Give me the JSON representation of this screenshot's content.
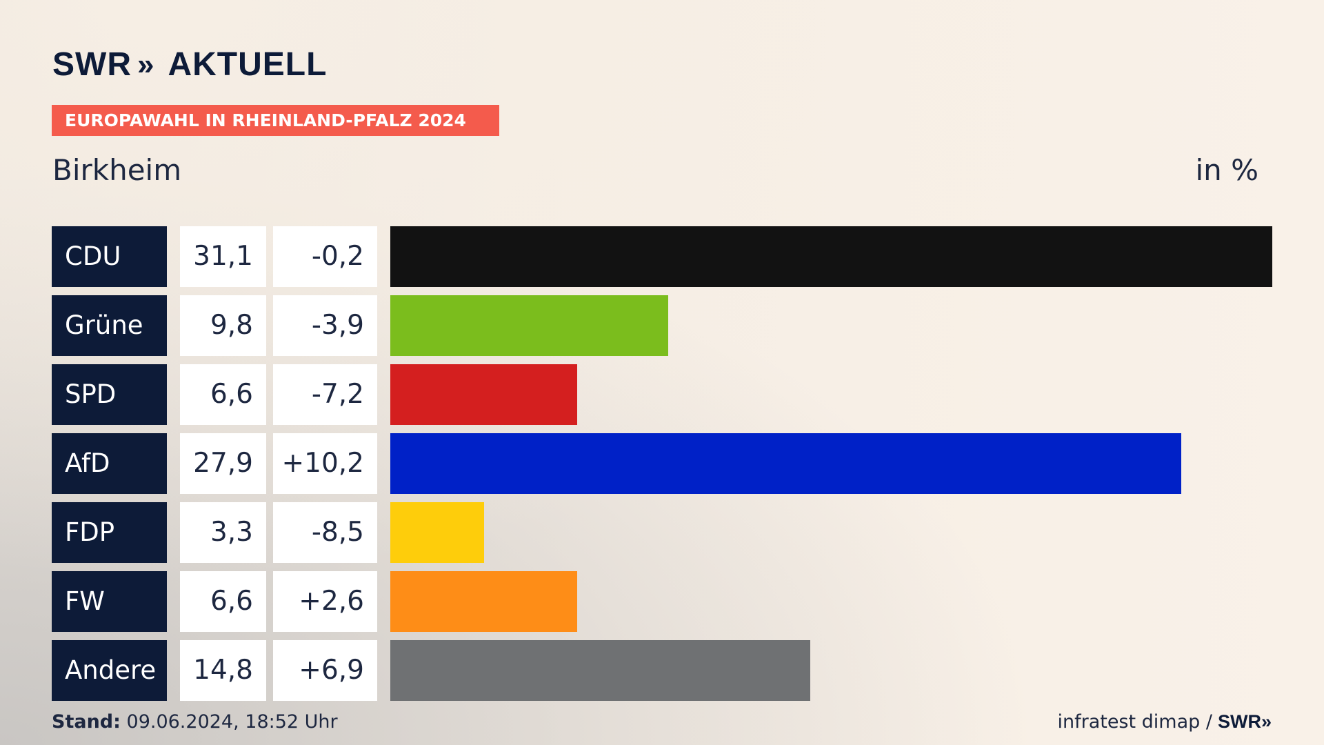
{
  "header": {
    "logo_main": "SWR",
    "logo_chevrons": "»",
    "logo_suffix": "AKTUELL",
    "tag": "EUROPAWAHL IN RHEINLAND-PFALZ 2024",
    "place": "Birkheim",
    "unit": "in %"
  },
  "colors": {
    "navy": "#0d1b38",
    "tag": "#f45b4c"
  },
  "chart_data": {
    "type": "bar",
    "orientation": "horizontal",
    "title": "Birkheim",
    "unit_label": "in %",
    "categories": [
      "CDU",
      "Grüne",
      "SPD",
      "AfD",
      "FDP",
      "FW",
      "Andere"
    ],
    "values": [
      31.1,
      9.8,
      6.6,
      27.9,
      3.3,
      6.6,
      14.8
    ],
    "value_labels": [
      "31,1",
      "9,8",
      "6,6",
      "27,9",
      "3,3",
      "6,6",
      "14,8"
    ],
    "change_labels": [
      "-0,2",
      "-3,9",
      "-7,2",
      "+10,2",
      "-8,5",
      "+2,6",
      "+6,9"
    ],
    "colors": [
      "#121212",
      "#7bbd1d",
      "#d41f1f",
      "#0021c7",
      "#fecd0b",
      "#fe8d17",
      "#6f7173"
    ],
    "xlim": [
      0,
      31.1
    ]
  },
  "footer": {
    "stand_label": "Stand:",
    "stand_value": "09.06.2024, 18:52 Uhr",
    "source": "infratest dimap /",
    "source_logo": "SWR»"
  }
}
